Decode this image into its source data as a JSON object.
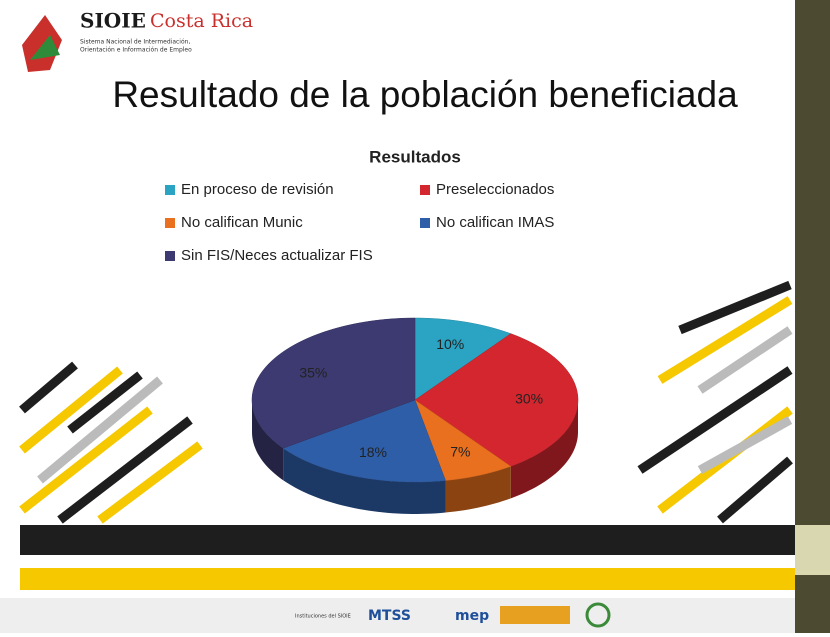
{
  "header": {
    "logo_title": "SIOIE",
    "logo_region": "Costa Rica",
    "logo_caption_1": "Sistema Nacional de Intermediación,",
    "logo_caption_2": "Orientación e Información de Empleo"
  },
  "slide_title": "Resultado de la población beneficiada",
  "chart_data": {
    "type": "pie",
    "title": "Resultados",
    "categories": [
      "En proceso de revisión",
      "Preseleccionados",
      "No califican Munic",
      "No califican IMAS",
      "Sin FIS/Neces actualizar FIS"
    ],
    "values": [
      10,
      30,
      7,
      18,
      35
    ],
    "value_labels": [
      "10%",
      "30%",
      "7%",
      "18%",
      "35%"
    ],
    "colors": [
      "#2ba3c2",
      "#d4262e",
      "#e8701e",
      "#2f5ea8",
      "#3c3a70"
    ],
    "legend": "top"
  },
  "footer": {
    "caption": "Instituciones del SIOIE",
    "logos": [
      "MTSS",
      "mep"
    ]
  }
}
